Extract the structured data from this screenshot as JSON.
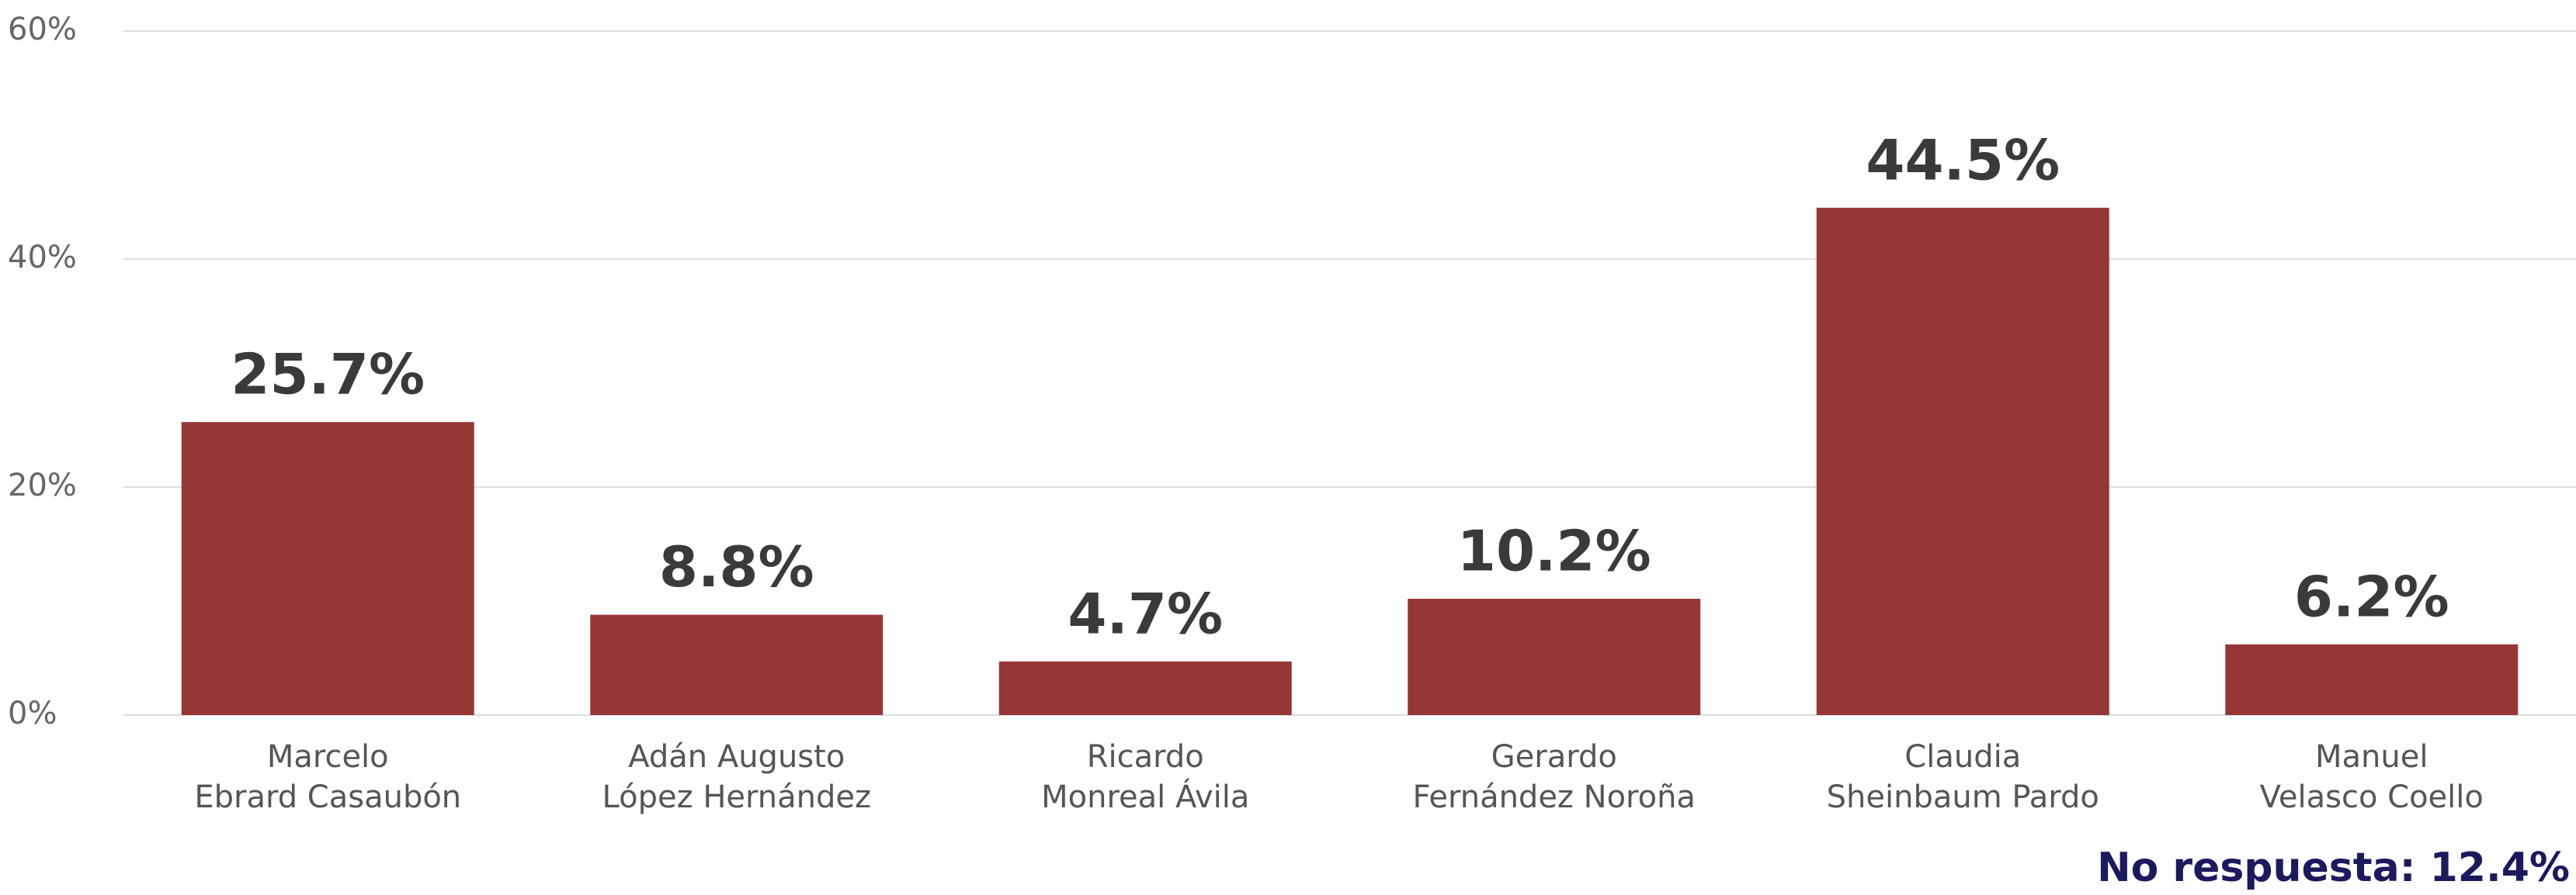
{
  "chart_data": {
    "type": "bar",
    "categories": [
      [
        "Marcelo",
        "Ebrard Casaubón"
      ],
      [
        "Adán Augusto",
        "López Hernández"
      ],
      [
        "Ricardo",
        "Monreal Ávila"
      ],
      [
        "Gerardo",
        "Fernández Noroña"
      ],
      [
        "Claudia",
        "Sheinbaum Pardo"
      ],
      [
        "Manuel",
        "Velasco Coello"
      ]
    ],
    "values": [
      25.7,
      8.8,
      4.7,
      10.2,
      44.5,
      6.2
    ],
    "value_labels": [
      "25.7%",
      "8.8%",
      "4.7%",
      "10.2%",
      "44.5%",
      "6.2%"
    ],
    "color": "#963735",
    "ylim": [
      0,
      60
    ],
    "yticks": [
      {
        "value": 0,
        "label": "0%"
      },
      {
        "value": 20,
        "label": "20%"
      },
      {
        "value": 40,
        "label": "40%"
      },
      {
        "value": 60,
        "label": "60%"
      }
    ],
    "grid": true,
    "annotation": "No respuesta: 12.4%"
  }
}
